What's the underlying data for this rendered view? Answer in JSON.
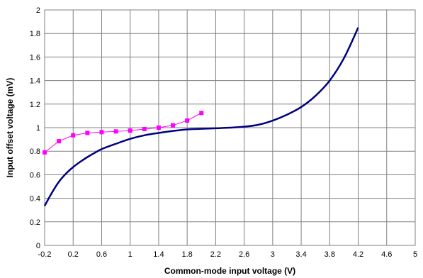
{
  "chart_data": {
    "type": "line",
    "title": "",
    "xlabel": "Common-mode input voltage (V)",
    "ylabel": "Input offset voltage (mV)",
    "xlim": [
      -0.2,
      5
    ],
    "ylim": [
      0,
      2
    ],
    "xticks": [
      -0.2,
      0.2,
      0.6,
      1,
      1.4,
      1.8,
      2.2,
      2.6,
      3,
      3.4,
      3.8,
      4.2,
      4.6,
      5
    ],
    "xtick_labels": [
      "-0.2",
      "0.2",
      "0.6",
      "1",
      "1.4",
      "1.8",
      "2.2",
      "2.6",
      "3",
      "3.4",
      "3.8",
      "4.2",
      "4.6",
      "5"
    ],
    "yticks": [
      0,
      0.2,
      0.4,
      0.6,
      0.8,
      1,
      1.2,
      1.4,
      1.6,
      1.8,
      2
    ],
    "ytick_labels": [
      "0",
      "0.2",
      "0.4",
      "0.6",
      "0.8",
      "1",
      "1.2",
      "1.4",
      "1.6",
      "1.8",
      "2"
    ],
    "grid": true,
    "legend": "none",
    "series": [
      {
        "color": "#ff00ff",
        "marker": "square",
        "x": [
          -0.2,
          0.0,
          0.2,
          0.4,
          0.6,
          0.8,
          1.0,
          1.2,
          1.4,
          1.6,
          1.8,
          2.0
        ],
        "y": [
          0.79,
          0.885,
          0.935,
          0.955,
          0.962,
          0.968,
          0.975,
          0.988,
          1.0,
          1.02,
          1.06,
          1.125
        ]
      },
      {
        "color": "#000080",
        "marker": "none",
        "x": [
          -0.2,
          -0.1,
          0.0,
          0.1,
          0.2,
          0.3,
          0.4,
          0.5,
          0.6,
          0.8,
          1.0,
          1.2,
          1.4,
          1.6,
          1.8,
          2.0,
          2.2,
          2.4,
          2.6,
          2.8,
          3.0,
          3.2,
          3.4,
          3.6,
          3.8,
          4.0,
          4.2
        ],
        "y": [
          0.335,
          0.445,
          0.54,
          0.61,
          0.665,
          0.71,
          0.75,
          0.785,
          0.818,
          0.863,
          0.905,
          0.935,
          0.955,
          0.972,
          0.985,
          0.99,
          0.995,
          1.0,
          1.008,
          1.025,
          1.06,
          1.11,
          1.175,
          1.27,
          1.4,
          1.59,
          1.85
        ]
      }
    ]
  }
}
